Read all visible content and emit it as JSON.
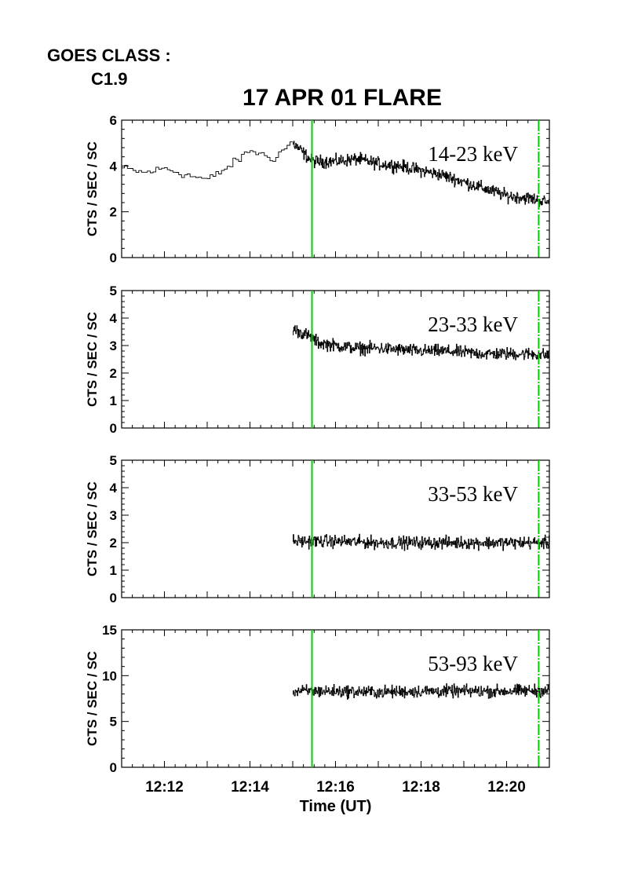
{
  "goes_class_label": "GOES CLASS :",
  "goes_class_value": "C1.9",
  "chart_data": {
    "type": "line",
    "title": "17 APR 01 FLARE",
    "xlabel": "Time (UT)",
    "x_range_minutes": [
      11.0,
      21.0
    ],
    "x_ticks": [
      "12:12",
      "12:14",
      "12:16",
      "12:18",
      "12:20"
    ],
    "x_tick_minutes": [
      12,
      14,
      16,
      18,
      20
    ],
    "vertical_markers_minutes": [
      15.45,
      20.75
    ],
    "marker_color": "#00d000",
    "line_color": "#000000",
    "panels": [
      {
        "band": "14-23 keV",
        "ylabel": "CTS / SEC / SC",
        "ylim": [
          0,
          6
        ],
        "yticks": [
          0,
          2,
          4,
          6
        ],
        "coarse_series": {
          "x_minutes": [
            11.0,
            11.5,
            12.0,
            12.5,
            13.0,
            13.5,
            14.0,
            14.5,
            15.0
          ],
          "y": [
            3.9,
            3.7,
            3.9,
            3.6,
            3.4,
            4.0,
            4.7,
            4.3,
            5.1
          ]
        },
        "fine_series": {
          "x_minutes": [
            15.0,
            15.45,
            16.0,
            16.5,
            17.0,
            17.5,
            18.0,
            18.5,
            19.0,
            19.5,
            20.0,
            20.5,
            21.0
          ],
          "y": [
            5.0,
            4.2,
            4.2,
            4.3,
            4.1,
            4.0,
            3.8,
            3.6,
            3.3,
            3.0,
            2.7,
            2.6,
            2.4
          ]
        }
      },
      {
        "band": "23-33 keV",
        "ylabel": "CTS / SEC / SC",
        "ylim": [
          0,
          5
        ],
        "yticks": [
          0,
          1,
          2,
          3,
          4,
          5
        ],
        "fine_series": {
          "x_minutes": [
            15.0,
            15.3,
            15.6,
            16.0,
            16.5,
            17.0,
            17.5,
            18.0,
            18.5,
            19.0,
            19.5,
            20.0,
            20.5,
            21.0
          ],
          "y": [
            3.6,
            3.4,
            3.1,
            3.0,
            2.9,
            2.9,
            2.85,
            2.8,
            2.8,
            2.75,
            2.7,
            2.7,
            2.7,
            2.65
          ]
        }
      },
      {
        "band": "33-53 keV",
        "ylabel": "CTS / SEC / SC",
        "ylim": [
          0,
          5
        ],
        "yticks": [
          0,
          1,
          2,
          3,
          4,
          5
        ],
        "fine_series": {
          "x_minutes": [
            15.0,
            16.0,
            17.0,
            18.0,
            19.0,
            20.0,
            21.0
          ],
          "y": [
            2.05,
            2.05,
            2.0,
            2.0,
            2.0,
            2.0,
            2.0
          ]
        }
      },
      {
        "band": "53-93 keV",
        "ylabel": "CTS / SEC / SC",
        "ylim": [
          0,
          15
        ],
        "yticks": [
          0,
          5,
          10,
          15
        ],
        "fine_series": {
          "x_minutes": [
            15.0,
            16.0,
            17.0,
            18.0,
            19.0,
            20.0,
            21.0
          ],
          "y": [
            8.3,
            8.3,
            8.2,
            8.3,
            8.3,
            8.3,
            8.4
          ]
        }
      }
    ]
  }
}
